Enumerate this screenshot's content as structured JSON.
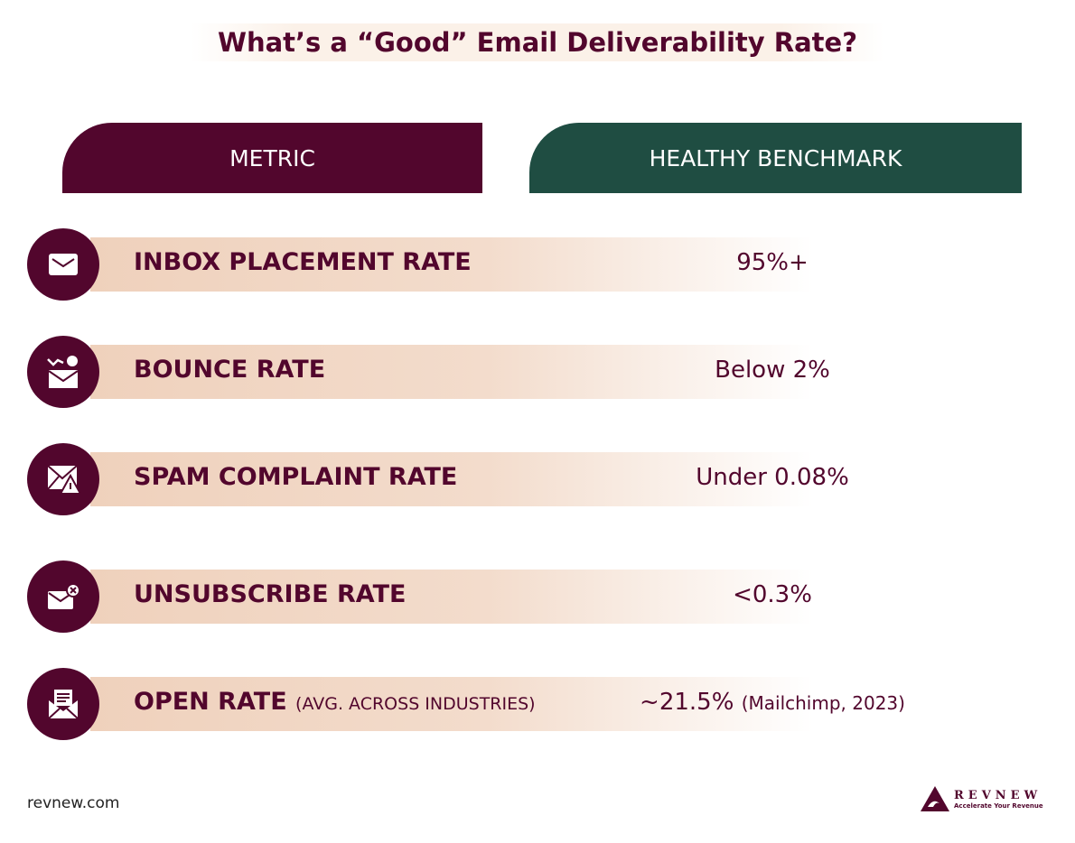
{
  "title": "What’s a “Good” Email Deliverability Rate?",
  "headers": {
    "metric": "METRIC",
    "benchmark": "HEALTHY BENCHMARK"
  },
  "colors": {
    "maroon": "#52062d",
    "green": "#1f4d42",
    "peach": "#efd1bc"
  },
  "rows": [
    {
      "icon": "envelope-icon",
      "metric": "INBOX PLACEMENT RATE",
      "note": "",
      "value": "95%+",
      "value_note": ""
    },
    {
      "icon": "envelope-chart-icon",
      "metric": "BOUNCE RATE",
      "note": "",
      "value": "Below 2%",
      "value_note": ""
    },
    {
      "icon": "envelope-warning-icon",
      "metric": "SPAM COMPLAINT RATE",
      "note": "",
      "value": "Under 0.08%",
      "value_note": ""
    },
    {
      "icon": "envelope-remove-icon",
      "metric": "UNSUBSCRIBE RATE",
      "note": "",
      "value": "<0.3%",
      "value_note": ""
    },
    {
      "icon": "open-envelope-letter-icon",
      "metric": "OPEN RATE",
      "note": "(AVG. ACROSS INDUSTRIES)",
      "value": "~21.5%",
      "value_note": "(Mailchimp, 2023)"
    }
  ],
  "footer": "revnew.com",
  "logo": {
    "name": "REVNEW",
    "tagline": "Accelerate Your Revenue"
  }
}
